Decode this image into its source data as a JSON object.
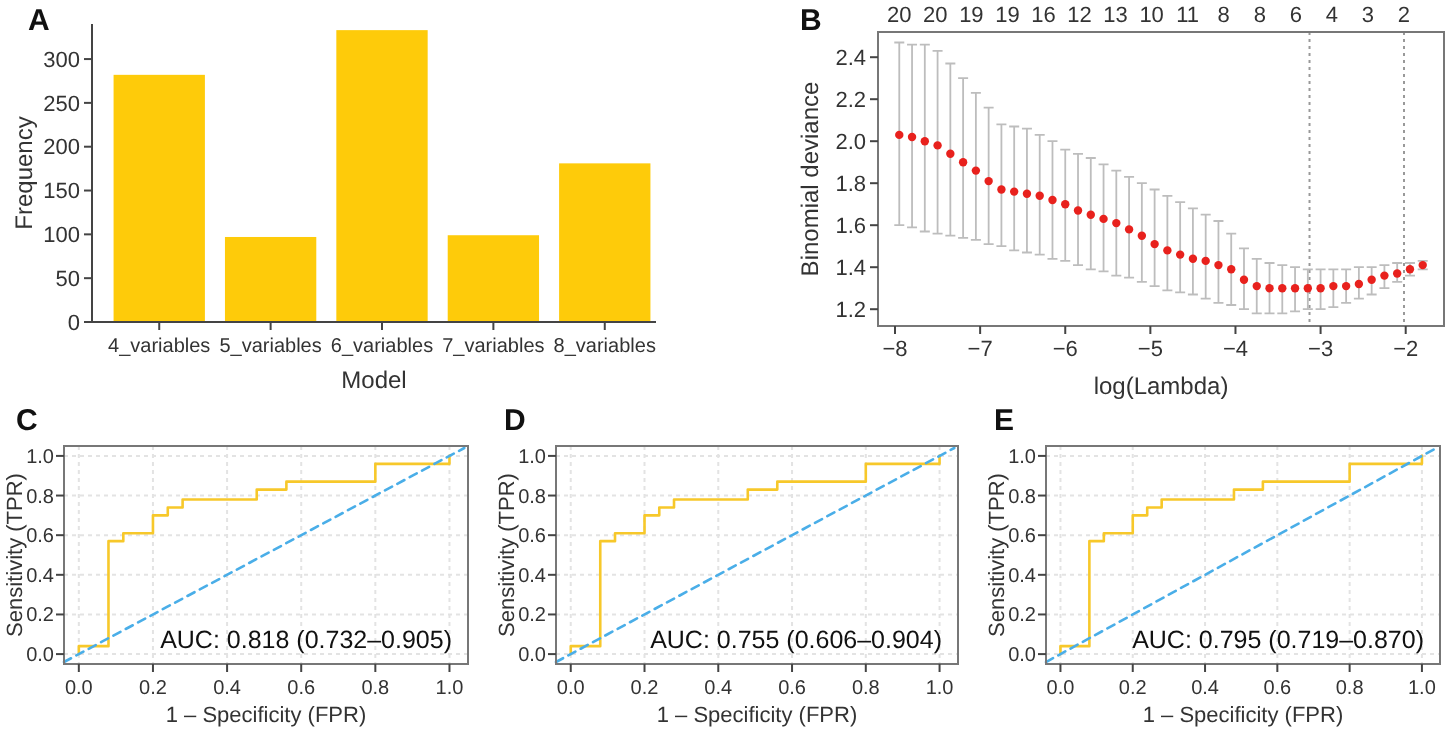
{
  "chart_data": [
    {
      "type": "bar",
      "title": "A",
      "xlabel": "Model",
      "ylabel": "Frequency",
      "categories": [
        "4_variables",
        "5_variables",
        "6_variables",
        "7_variables",
        "8_variables"
      ],
      "values": [
        282,
        97,
        333,
        99,
        181
      ],
      "color": "#fecb0a",
      "ylim": [
        0,
        340
      ],
      "yticks": [
        0,
        50,
        100,
        150,
        200,
        250,
        300
      ],
      "grid": false
    },
    {
      "type": "scatter",
      "title": "B",
      "xlabel": "log(Lambda)",
      "ylabel": "Binomial deviance",
      "xlim": [
        -8.2,
        -1.55
      ],
      "xticks": [
        {
          "value": -8,
          "label": "−8"
        },
        {
          "value": -7,
          "label": "−7"
        },
        {
          "value": -6,
          "label": "−6"
        },
        {
          "value": -5,
          "label": "−5"
        },
        {
          "value": -4,
          "label": "−4"
        },
        {
          "value": -3,
          "label": "−3"
        },
        {
          "value": -2,
          "label": "−2"
        }
      ],
      "annotations": [
        "20",
        "20",
        "19",
        "19",
        "16",
        "12",
        "13",
        "10",
        "11",
        "8",
        "8",
        "6",
        "4",
        "3",
        "2"
      ],
      "ylim": [
        1.12,
        2.52
      ],
      "yticks": [
        1.2,
        1.4,
        1.6,
        1.8,
        {
          "value": 2,
          "label": "2.0"
        },
        2.2,
        2.4
      ],
      "grid": false,
      "ref_lines": [
        {
          "axis": "x",
          "value": -3.13,
          "color": "#999999",
          "line_style": "dotted"
        },
        {
          "axis": "x",
          "value": -2.02,
          "color": "#999999",
          "line_style": "dotted"
        }
      ],
      "series": [
        {
          "type": "scatter",
          "color": "#e8211d",
          "marker": "circle",
          "x": [
            -7.95,
            -7.8,
            -7.65,
            -7.5,
            -7.35,
            -7.2,
            -7.05,
            -6.9,
            -6.75,
            -6.6,
            -6.45,
            -6.3,
            -6.15,
            -6,
            -5.85,
            -5.7,
            -5.55,
            -5.4,
            -5.25,
            -5.1,
            -4.95,
            -4.8,
            -4.65,
            -4.5,
            -4.35,
            -4.2,
            -4.05,
            -3.9,
            -3.75,
            -3.6,
            -3.45,
            -3.3,
            -3.15,
            -3,
            -2.85,
            -2.7,
            -2.55,
            -2.4,
            -2.25,
            -2.1,
            -1.95,
            -1.8
          ],
          "values": [
            2.03,
            2.02,
            2,
            1.98,
            1.94,
            1.9,
            1.86,
            1.81,
            1.77,
            1.76,
            1.75,
            1.74,
            1.72,
            1.7,
            1.67,
            1.65,
            1.63,
            1.61,
            1.58,
            1.55,
            1.51,
            1.48,
            1.46,
            1.44,
            1.43,
            1.41,
            1.39,
            1.34,
            1.31,
            1.3,
            1.3,
            1.3,
            1.3,
            1.3,
            1.31,
            1.31,
            1.32,
            1.34,
            1.36,
            1.37,
            1.39,
            1.41
          ],
          "errors": [
            [
              1.6,
              2.47
            ],
            [
              1.59,
              2.46
            ],
            [
              1.57,
              2.46
            ],
            [
              1.56,
              2.43
            ],
            [
              1.55,
              2.37
            ],
            [
              1.54,
              2.3
            ],
            [
              1.53,
              2.23
            ],
            [
              1.51,
              2.16
            ],
            [
              1.5,
              2.08
            ],
            [
              1.48,
              2.07
            ],
            [
              1.47,
              2.06
            ],
            [
              1.46,
              2.03
            ],
            [
              1.44,
              2
            ],
            [
              1.43,
              1.96
            ],
            [
              1.41,
              1.94
            ],
            [
              1.39,
              1.92
            ],
            [
              1.38,
              1.89
            ],
            [
              1.36,
              1.86
            ],
            [
              1.35,
              1.83
            ],
            [
              1.33,
              1.8
            ],
            [
              1.31,
              1.77
            ],
            [
              1.29,
              1.74
            ],
            [
              1.28,
              1.71
            ],
            [
              1.27,
              1.68
            ],
            [
              1.25,
              1.65
            ],
            [
              1.23,
              1.62
            ],
            [
              1.22,
              1.56
            ],
            [
              1.2,
              1.49
            ],
            [
              1.18,
              1.44
            ],
            [
              1.18,
              1.42
            ],
            [
              1.18,
              1.41
            ],
            [
              1.19,
              1.4
            ],
            [
              1.2,
              1.39
            ],
            [
              1.2,
              1.39
            ],
            [
              1.21,
              1.39
            ],
            [
              1.23,
              1.39
            ],
            [
              1.25,
              1.4
            ],
            [
              1.27,
              1.4
            ],
            [
              1.3,
              1.41
            ],
            [
              1.33,
              1.42
            ],
            [
              1.36,
              1.42
            ],
            [
              1.39,
              1.43
            ]
          ]
        }
      ]
    },
    {
      "type": "step",
      "title": "C",
      "xlabel": "1 – Specificity (FPR)",
      "ylabel": "Sensitivity (TPR)",
      "xlim": [
        -0.04,
        1.05
      ],
      "xticks": [
        {
          "value": 0,
          "label": "0.0"
        },
        0.2,
        0.4,
        0.6,
        0.8,
        {
          "value": 1,
          "label": "1.0"
        }
      ],
      "ylim": [
        -0.05,
        1.05
      ],
      "yticks": [
        {
          "value": 0,
          "label": "0.0"
        },
        0.2,
        0.4,
        0.6,
        0.8,
        {
          "value": 1,
          "label": "1.0"
        }
      ],
      "grid": true,
      "annotations": [
        "AUC: 0.818 (0.732–0.905)"
      ],
      "series": [
        {
          "type": "step",
          "color": "#f7c82a",
          "x": [
            0,
            0,
            0.08,
            0.12,
            0.2,
            0.24,
            0.28,
            0.48,
            0.56,
            0.8,
            1,
            1
          ],
          "values": [
            0,
            0.04,
            0.57,
            0.61,
            0.7,
            0.74,
            0.78,
            0.83,
            0.87,
            0.96,
            0.96,
            1
          ]
        },
        {
          "type": "line",
          "color": "#4aaee8",
          "line_style": "dashed",
          "x": [
            -0.04,
            1.04
          ],
          "values": [
            -0.04,
            1.04
          ]
        }
      ]
    },
    {
      "type": "step",
      "title": "D",
      "xlabel": "1 – Specificity (FPR)",
      "ylabel": "Sensitivity (TPR)",
      "xlim": [
        -0.04,
        1.05
      ],
      "xticks": [
        {
          "value": 0,
          "label": "0.0"
        },
        0.2,
        0.4,
        0.6,
        0.8,
        {
          "value": 1,
          "label": "1.0"
        }
      ],
      "ylim": [
        -0.05,
        1.05
      ],
      "yticks": [
        {
          "value": 0,
          "label": "0.0"
        },
        0.2,
        0.4,
        0.6,
        0.8,
        {
          "value": 1,
          "label": "1.0"
        }
      ],
      "grid": true,
      "annotations": [
        "AUC: 0.755 (0.606–0.904)"
      ],
      "series": [
        {
          "type": "step",
          "color": "#f7c82a",
          "x": [
            0,
            0,
            0.08,
            0.12,
            0.2,
            0.24,
            0.28,
            0.48,
            0.56,
            0.8,
            1,
            1
          ],
          "values": [
            0,
            0.04,
            0.57,
            0.61,
            0.7,
            0.74,
            0.78,
            0.83,
            0.87,
            0.96,
            0.96,
            1
          ]
        },
        {
          "type": "line",
          "color": "#4aaee8",
          "line_style": "dashed",
          "x": [
            -0.04,
            1.04
          ],
          "values": [
            -0.04,
            1.04
          ]
        }
      ]
    },
    {
      "type": "step",
      "title": "E",
      "xlabel": "1 – Specificity (FPR)",
      "ylabel": "Sensitivity (TPR)",
      "xlim": [
        -0.04,
        1.05
      ],
      "xticks": [
        {
          "value": 0,
          "label": "0.0"
        },
        0.2,
        0.4,
        0.6,
        0.8,
        {
          "value": 1,
          "label": "1.0"
        }
      ],
      "ylim": [
        -0.05,
        1.05
      ],
      "yticks": [
        {
          "value": 0,
          "label": "0.0"
        },
        0.2,
        0.4,
        0.6,
        0.8,
        {
          "value": 1,
          "label": "1.0"
        }
      ],
      "grid": true,
      "annotations": [
        "AUC: 0.795 (0.719–0.870)"
      ],
      "series": [
        {
          "type": "step",
          "color": "#f7c82a",
          "x": [
            0,
            0,
            0.08,
            0.12,
            0.2,
            0.24,
            0.28,
            0.48,
            0.56,
            0.8,
            1,
            1
          ],
          "values": [
            0,
            0.04,
            0.57,
            0.61,
            0.7,
            0.74,
            0.78,
            0.83,
            0.87,
            0.96,
            0.96,
            1
          ]
        },
        {
          "type": "line",
          "color": "#4aaee8",
          "line_style": "dashed",
          "x": [
            -0.04,
            1.04
          ],
          "values": [
            -0.04,
            1.04
          ]
        }
      ]
    }
  ]
}
